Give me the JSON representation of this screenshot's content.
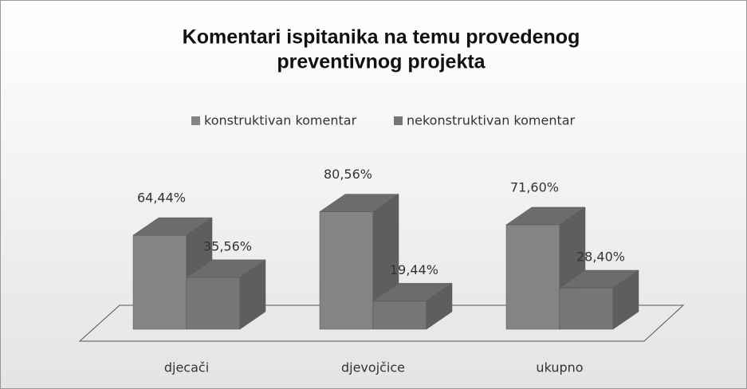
{
  "chart_data": {
    "type": "bar",
    "title": [
      "Komentari ispitanika na temu provedenog",
      "preventivnog projekta"
    ],
    "categories": [
      "djecači",
      "djevojčice",
      "ukupno"
    ],
    "series": [
      {
        "name": "konstruktivan komentar",
        "color": "#848484",
        "values": [
          64.44,
          80.56,
          71.6
        ],
        "value_labels": [
          "64,44%",
          "80,56%",
          "71,60%"
        ]
      },
      {
        "name": "nekonstruktivan komentar",
        "color": "#767676",
        "values": [
          35.56,
          19.44,
          28.4
        ],
        "value_labels": [
          "35,56%",
          "19,44%",
          "28,40%"
        ]
      }
    ],
    "legend": "top"
  }
}
